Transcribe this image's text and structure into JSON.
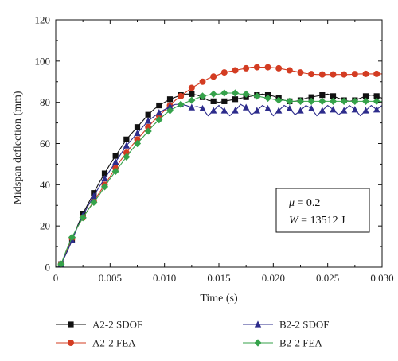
{
  "chart_data": {
    "type": "line",
    "xlabel": "Time (s)",
    "ylabel": "Midspan deflection (mm)",
    "xlim": [
      0,
      0.03
    ],
    "ylim": [
      0,
      120
    ],
    "xticks": [
      "0",
      "0.005",
      "0.010",
      "0.015",
      "0.020",
      "0.025",
      "0.030"
    ],
    "yticks": [
      "0",
      "20",
      "40",
      "60",
      "80",
      "100",
      "120"
    ],
    "legend_position": "below",
    "annotation": {
      "mu_label": "μ",
      "mu_value": " = 0.2",
      "w_label": "W",
      "w_value": " = 13512 J"
    },
    "series": [
      {
        "name": "A2-2 SDOF",
        "color": "#111111",
        "marker": "square",
        "x": [
          0,
          0.0005,
          0.001,
          0.0015,
          0.002,
          0.0025,
          0.003,
          0.0035,
          0.004,
          0.0045,
          0.005,
          0.0055,
          0.006,
          0.0065,
          0.007,
          0.0075,
          0.008,
          0.0085,
          0.009,
          0.0095,
          0.01,
          0.0105,
          0.011,
          0.0115,
          0.012,
          0.0125,
          0.013,
          0.0135,
          0.014,
          0.0145,
          0.015,
          0.0155,
          0.016,
          0.0165,
          0.017,
          0.0175,
          0.018,
          0.0185,
          0.019,
          0.0195,
          0.02,
          0.0205,
          0.021,
          0.0215,
          0.022,
          0.0225,
          0.023,
          0.0235,
          0.024,
          0.0245,
          0.025,
          0.0255,
          0.026,
          0.0265,
          0.027,
          0.0275,
          0.028,
          0.0285,
          0.029,
          0.0295,
          0.03
        ],
        "y": [
          0,
          1.5,
          7,
          13,
          20,
          26,
          31,
          36,
          41,
          45.5,
          50,
          54,
          58,
          62,
          65,
          68,
          71,
          74,
          76.5,
          78.5,
          80,
          81.5,
          82.5,
          83.5,
          84,
          84,
          83.5,
          82.5,
          81,
          80.5,
          80,
          80.5,
          81,
          81.5,
          82,
          82.5,
          83,
          83.5,
          84,
          83.5,
          83,
          82,
          81,
          80.5,
          80.5,
          81,
          82,
          82.5,
          83,
          83.5,
          84,
          83,
          82,
          81,
          80.5,
          81,
          82,
          83,
          83.5,
          83,
          82
        ]
      },
      {
        "name": "A2-2 FEA",
        "color": "#d33c22",
        "marker": "circle",
        "x": [
          0,
          0.0005,
          0.001,
          0.0015,
          0.002,
          0.0025,
          0.003,
          0.0035,
          0.004,
          0.0045,
          0.005,
          0.0055,
          0.006,
          0.0065,
          0.007,
          0.0075,
          0.008,
          0.0085,
          0.009,
          0.0095,
          0.01,
          0.0105,
          0.011,
          0.0115,
          0.012,
          0.0125,
          0.013,
          0.0135,
          0.014,
          0.0145,
          0.015,
          0.0155,
          0.016,
          0.0165,
          0.017,
          0.0175,
          0.018,
          0.0185,
          0.019,
          0.0195,
          0.02,
          0.0205,
          0.021,
          0.0215,
          0.022,
          0.0225,
          0.023,
          0.0235,
          0.024,
          0.0245,
          0.025,
          0.0255,
          0.026,
          0.0265,
          0.027,
          0.0275,
          0.028,
          0.0285,
          0.029,
          0.0295,
          0.03
        ],
        "y": [
          0,
          1.5,
          8,
          14,
          19.5,
          24,
          28,
          32,
          36,
          40,
          44,
          48,
          52,
          55.5,
          59,
          62,
          65,
          68,
          71,
          73.5,
          76,
          78.5,
          81,
          83,
          85,
          87,
          88.5,
          90,
          91.5,
          92.5,
          93.5,
          94.5,
          95,
          95.5,
          96,
          96.5,
          97,
          97,
          97,
          97,
          96.8,
          96.5,
          96,
          95.5,
          95,
          94.5,
          94,
          93.7,
          93.5,
          93.5,
          93.5,
          93.5,
          93.5,
          93.5,
          93.5,
          93.7,
          93.8,
          93.8,
          93.8,
          93.8,
          93.8
        ]
      },
      {
        "name": "B2-2 SDOF",
        "color": "#2d2c8c",
        "marker": "triangle",
        "x": [
          0,
          0.0005,
          0.001,
          0.0015,
          0.002,
          0.0025,
          0.003,
          0.0035,
          0.004,
          0.0045,
          0.005,
          0.0055,
          0.006,
          0.0065,
          0.007,
          0.0075,
          0.008,
          0.0085,
          0.009,
          0.0095,
          0.01,
          0.0105,
          0.011,
          0.0115,
          0.012,
          0.0125,
          0.013,
          0.0135,
          0.014,
          0.0145,
          0.015,
          0.0155,
          0.016,
          0.0165,
          0.017,
          0.0175,
          0.018,
          0.0185,
          0.019,
          0.0195,
          0.02,
          0.0205,
          0.021,
          0.0215,
          0.022,
          0.0225,
          0.023,
          0.0235,
          0.024,
          0.0245,
          0.025,
          0.0255,
          0.026,
          0.0265,
          0.027,
          0.0275,
          0.028,
          0.0285,
          0.029,
          0.0295,
          0.03
        ],
        "y": [
          0,
          1.5,
          7,
          13,
          19.5,
          25,
          30,
          34.5,
          39,
          43,
          47,
          51,
          55,
          59,
          62,
          65,
          68,
          71,
          73,
          75,
          76.5,
          78,
          79,
          79,
          78.5,
          77.5,
          78,
          77,
          73.5,
          76,
          78.5,
          76,
          73.5,
          76,
          79,
          77.5,
          74,
          76,
          78.5,
          77,
          73.5,
          76,
          78.5,
          77,
          74,
          76,
          78.5,
          77,
          73.5,
          76,
          78.5,
          76.5,
          74,
          76,
          78.5,
          76.5,
          73.5,
          76,
          78.5,
          76.5,
          78.5
        ]
      },
      {
        "name": "B2-2 FEA",
        "color": "#35a24a",
        "marker": "diamond",
        "x": [
          0,
          0.0005,
          0.001,
          0.0015,
          0.002,
          0.0025,
          0.003,
          0.0035,
          0.004,
          0.0045,
          0.005,
          0.0055,
          0.006,
          0.0065,
          0.007,
          0.0075,
          0.008,
          0.0085,
          0.009,
          0.0095,
          0.01,
          0.0105,
          0.011,
          0.0115,
          0.012,
          0.0125,
          0.013,
          0.0135,
          0.014,
          0.0145,
          0.015,
          0.0155,
          0.016,
          0.0165,
          0.017,
          0.0175,
          0.018,
          0.0185,
          0.019,
          0.0195,
          0.02,
          0.0205,
          0.021,
          0.0215,
          0.022,
          0.0225,
          0.023,
          0.0235,
          0.024,
          0.0245,
          0.025,
          0.0255,
          0.026,
          0.0265,
          0.027,
          0.0275,
          0.028,
          0.0285,
          0.029,
          0.0295,
          0.03
        ],
        "y": [
          0,
          1.5,
          8.5,
          14.5,
          19.5,
          24,
          28,
          31.5,
          35,
          39,
          43,
          46.5,
          50,
          53.5,
          57,
          60,
          63,
          66,
          69,
          71.5,
          74,
          76,
          77.5,
          79,
          80,
          81,
          82,
          83,
          83.5,
          84,
          84,
          84.5,
          84.5,
          84.5,
          84,
          84,
          83.5,
          83,
          82.5,
          82,
          81.5,
          81,
          81,
          80.5,
          80.5,
          80.5,
          80.5,
          80.5,
          80.5,
          80.5,
          80.5,
          80.5,
          80.5,
          80.5,
          80.5,
          80.5,
          80.5,
          80.5,
          80.5,
          80.5,
          80.5
        ]
      }
    ]
  }
}
